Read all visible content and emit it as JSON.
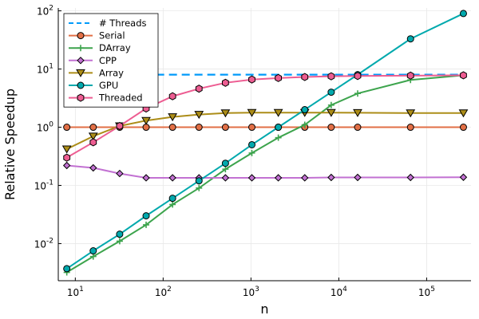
{
  "chart_data": {
    "type": "line",
    "xlabel": "n",
    "ylabel": "Relative Speedup",
    "xscale": "log10",
    "yscale": "log10",
    "xlim": [
      6.4,
      320000
    ],
    "ylim": [
      0.0023,
      112
    ],
    "grid": true,
    "legend_position": "top-left",
    "xticks": [
      {
        "value": 10,
        "base": "10",
        "exp": "1"
      },
      {
        "value": 100,
        "base": "10",
        "exp": "2"
      },
      {
        "value": 1000,
        "base": "10",
        "exp": "3"
      },
      {
        "value": 10000,
        "base": "10",
        "exp": "4"
      },
      {
        "value": 100000,
        "base": "10",
        "exp": "5"
      }
    ],
    "yticks": [
      {
        "value": 0.01,
        "base": "10",
        "exp": "-2"
      },
      {
        "value": 0.1,
        "base": "10",
        "exp": "-1"
      },
      {
        "value": 1,
        "base": "10",
        "exp": "0"
      },
      {
        "value": 10,
        "base": "10",
        "exp": "1"
      },
      {
        "value": 100,
        "base": "10",
        "exp": "2"
      }
    ],
    "series": [
      {
        "name": "# Threads",
        "color": "#009AFA",
        "marker": "none",
        "dashed": true,
        "x": [
          8,
          262144
        ],
        "y": [
          8,
          8
        ]
      },
      {
        "name": "Serial",
        "color": "#E26F46",
        "marker": "circle",
        "x": [
          8,
          16,
          32,
          64,
          128,
          256,
          512,
          1024,
          2048,
          4096,
          8192,
          16384,
          65536,
          262144
        ],
        "y": [
          1,
          1,
          1,
          1,
          1,
          1,
          1,
          1,
          1,
          1,
          1,
          1,
          1,
          1
        ]
      },
      {
        "name": "DArray",
        "color": "#3DA44D",
        "marker": "plus",
        "x": [
          8,
          16,
          32,
          64,
          128,
          256,
          512,
          1024,
          2048,
          4096,
          8192,
          16384,
          65536,
          262144
        ],
        "y": [
          0.0032,
          0.006,
          0.011,
          0.021,
          0.047,
          0.09,
          0.19,
          0.36,
          0.66,
          1.1,
          2.4,
          3.8,
          6.5,
          7.8
        ]
      },
      {
        "name": "CPP",
        "color": "#C271D2",
        "marker": "diamond",
        "x": [
          8,
          16,
          32,
          64,
          128,
          256,
          512,
          1024,
          2048,
          4096,
          8192,
          16384,
          65536,
          262144
        ],
        "y": [
          0.22,
          0.2,
          0.16,
          0.135,
          0.135,
          0.135,
          0.135,
          0.135,
          0.135,
          0.135,
          0.137,
          0.137,
          0.137,
          0.138
        ]
      },
      {
        "name": "Array",
        "color": "#AC8D18",
        "marker": "triangle-down",
        "x": [
          8,
          16,
          32,
          64,
          128,
          256,
          512,
          1024,
          2048,
          4096,
          8192,
          16384,
          65536,
          262144
        ],
        "y": [
          0.42,
          0.7,
          1.05,
          1.3,
          1.5,
          1.65,
          1.75,
          1.78,
          1.78,
          1.78,
          1.78,
          1.77,
          1.75,
          1.75
        ]
      },
      {
        "name": "GPU",
        "color": "#00A9AD",
        "marker": "circle",
        "x": [
          8,
          16,
          32,
          64,
          128,
          256,
          512,
          1024,
          2048,
          4096,
          8192,
          16384,
          65536,
          262144
        ],
        "y": [
          0.0037,
          0.0075,
          0.0145,
          0.03,
          0.06,
          0.12,
          0.24,
          0.5,
          1.0,
          2.0,
          4.0,
          8.0,
          33,
          90
        ]
      },
      {
        "name": "Threaded",
        "color": "#ED5D92",
        "marker": "hexagon",
        "x": [
          8,
          16,
          32,
          64,
          128,
          256,
          512,
          1024,
          2048,
          4096,
          8192,
          16384,
          65536,
          262144
        ],
        "y": [
          0.3,
          0.55,
          1.05,
          2.1,
          3.4,
          4.6,
          5.8,
          6.6,
          7.0,
          7.3,
          7.5,
          7.6,
          7.7,
          7.8
        ]
      }
    ]
  }
}
